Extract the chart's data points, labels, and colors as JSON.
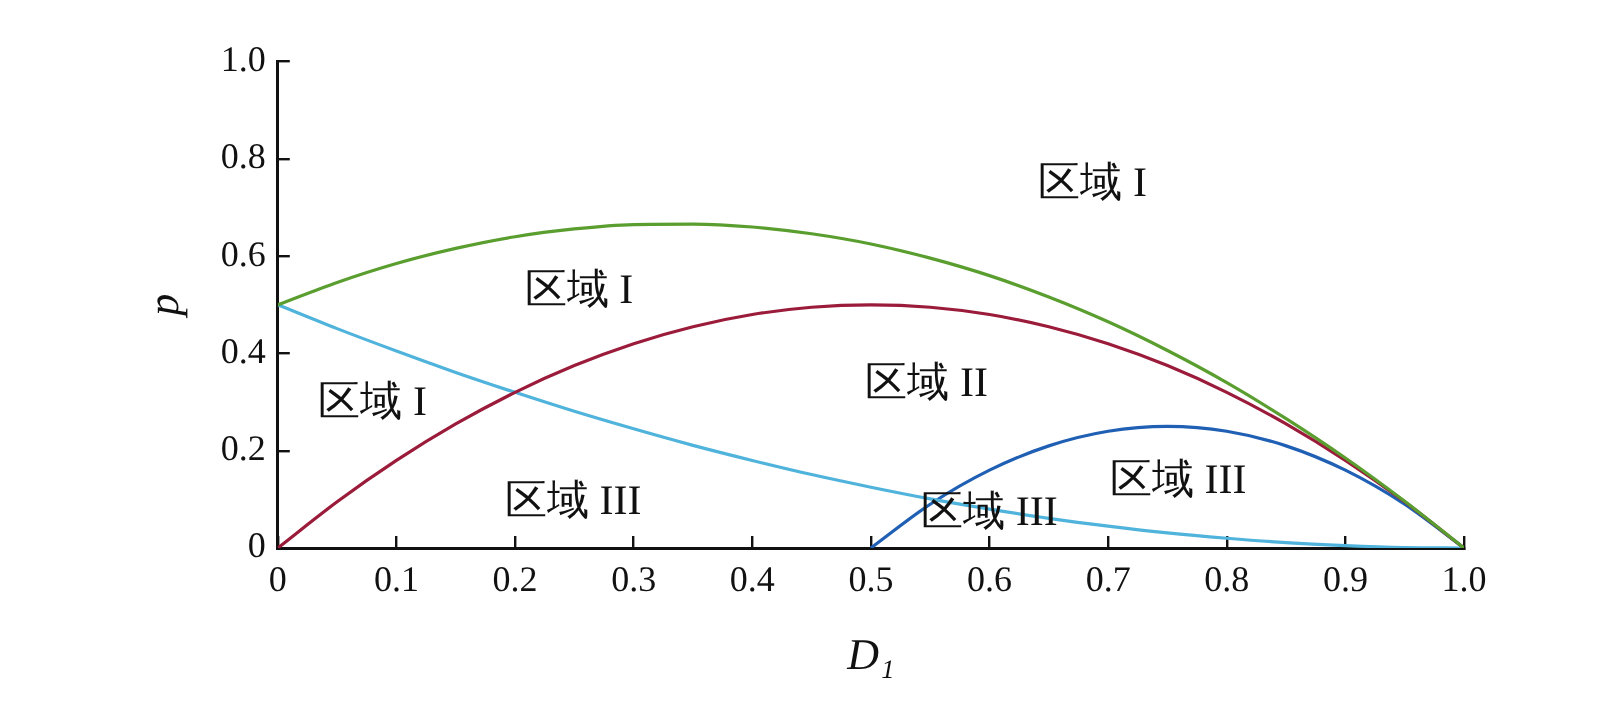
{
  "chart_data": {
    "type": "line",
    "xlabel": "D₁",
    "ylabel": "p",
    "x": [
      0,
      0.05,
      0.1,
      0.15,
      0.2,
      0.25,
      0.3,
      0.35,
      0.4,
      0.45,
      0.5,
      0.55,
      0.6,
      0.65,
      0.7,
      0.75,
      0.8,
      0.85,
      0.9,
      0.95,
      1
    ],
    "series": [
      {
        "color": "#5a9e2f",
        "values": [
          0.5,
          0.546,
          0.585,
          0.616,
          0.64,
          0.656,
          0.665,
          0.666,
          0.66,
          0.646,
          0.625,
          0.596,
          0.56,
          0.516,
          0.465,
          0.406,
          0.34,
          0.266,
          0.185,
          0.096,
          0
        ]
      },
      {
        "color": "#9b1b3a",
        "values": [
          0,
          0.095,
          0.18,
          0.255,
          0.32,
          0.375,
          0.42,
          0.455,
          0.48,
          0.495,
          0.5,
          0.495,
          0.48,
          0.455,
          0.42,
          0.375,
          0.32,
          0.255,
          0.18,
          0.095,
          0
        ]
      },
      {
        "color": "#4fb3dc",
        "values": [
          0.5,
          0.451,
          0.405,
          0.361,
          0.32,
          0.281,
          0.245,
          0.211,
          0.18,
          0.151,
          0.125,
          0.101,
          0.08,
          0.061,
          0.045,
          0.031,
          0.02,
          0.011,
          0.005,
          0.001,
          0
        ]
      },
      {
        "color": "#1f5fb4",
        "x": [
          0.5,
          0.55,
          0.6,
          0.65,
          0.7,
          0.75,
          0.8,
          0.85,
          0.9,
          0.95,
          1
        ],
        "values": [
          0,
          0.09,
          0.16,
          0.21,
          0.24,
          0.25,
          0.24,
          0.21,
          0.16,
          0.09,
          0
        ]
      }
    ],
    "xlim": [
      0,
      1
    ],
    "xticks": [
      {
        "value": 0,
        "label": "0"
      },
      0.1,
      0.2,
      0.3,
      0.4,
      0.5,
      0.6,
      0.7,
      0.8,
      0.9,
      {
        "value": 1,
        "label": "1.0"
      }
    ],
    "ylim": [
      0,
      1
    ],
    "yticks": [
      {
        "value": 0,
        "label": "0"
      },
      0.2,
      0.4,
      0.6,
      0.8,
      {
        "value": 1,
        "label": "1.0"
      }
    ],
    "grid": false,
    "legend": false,
    "marker": "none",
    "line_style": "solid",
    "annotations": [
      "区域 I",
      "区域 I",
      "区域 I",
      "区域 II",
      "区域 III",
      "区域 III",
      "区域 III"
    ]
  }
}
